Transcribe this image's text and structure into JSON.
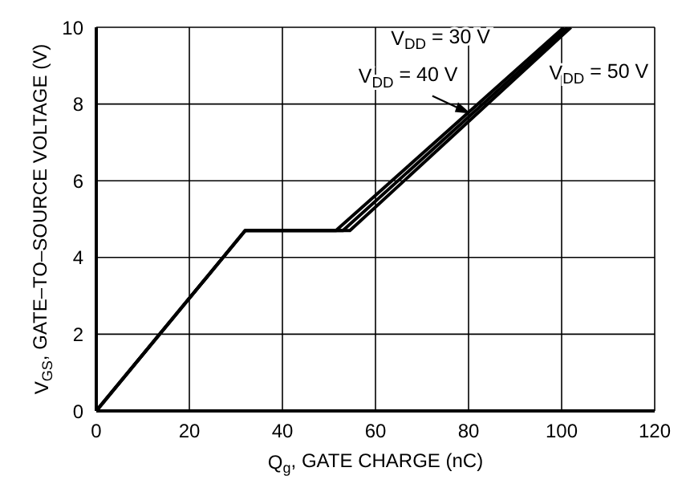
{
  "chart_data": {
    "type": "line",
    "xlabel": "Q$_{g}$, GATE CHARGE (nC)",
    "ylabel": "V$_{GS}$, GATE–TO–SOURCE VOLTAGE (V)",
    "series": [
      {
        "name": "V$_{DD}$ = 30 V",
        "color": "#000000",
        "x": [
          0,
          32,
          51.5,
          100.5
        ],
        "values": [
          0,
          4.7,
          4.7,
          10
        ]
      },
      {
        "name": "V$_{DD}$ = 40 V",
        "color": "#000000",
        "x": [
          0,
          32,
          53,
          101.3
        ],
        "values": [
          0,
          4.7,
          4.7,
          10
        ]
      },
      {
        "name": "V$_{DD}$ = 50 V",
        "color": "#000000",
        "x": [
          0,
          32,
          54.5,
          102
        ],
        "values": [
          0,
          4.7,
          4.7,
          10
        ]
      }
    ],
    "xlim": [
      0,
      120
    ],
    "xticks": [
      0,
      20,
      40,
      60,
      80,
      100,
      120
    ],
    "ylim": [
      0,
      10
    ],
    "yticks": [
      0,
      2,
      4,
      6,
      8,
      10
    ],
    "grid": true,
    "marker": "none",
    "line_style": "solid"
  }
}
